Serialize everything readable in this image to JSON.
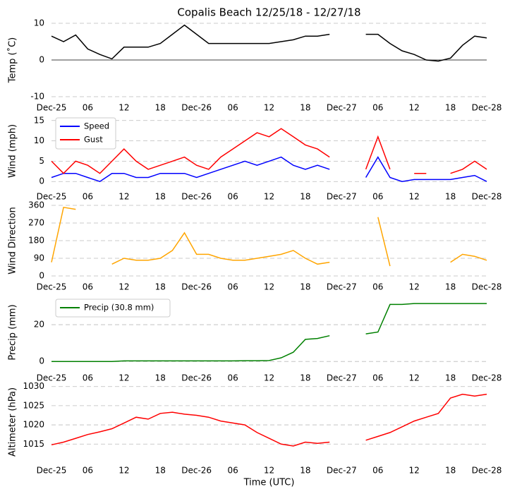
{
  "chart_data": [
    {
      "type": "line",
      "title": "Copalis Beach 12/25/18 - 12/27/18",
      "ylabel": "Temp (˚C)",
      "zero_line": true,
      "grid": true,
      "x": [
        0,
        2,
        4,
        6,
        8,
        10,
        12,
        14,
        16,
        18,
        20,
        22,
        24,
        26,
        28,
        30,
        32,
        34,
        36,
        38,
        40,
        42,
        44,
        46,
        48,
        50,
        52,
        54,
        56,
        58,
        60,
        62,
        64,
        66,
        68,
        70,
        72
      ],
      "xlim": [
        0,
        72
      ],
      "xticks": [
        {
          "value": 0,
          "label": "Dec-25"
        },
        {
          "value": 6,
          "label": "06"
        },
        {
          "value": 12,
          "label": "12"
        },
        {
          "value": 18,
          "label": "18"
        },
        {
          "value": 24,
          "label": "Dec-26"
        },
        {
          "value": 30,
          "label": "06"
        },
        {
          "value": 36,
          "label": "12"
        },
        {
          "value": 42,
          "label": "18"
        },
        {
          "value": 48,
          "label": "Dec-27"
        },
        {
          "value": 54,
          "label": "06"
        },
        {
          "value": 60,
          "label": "12"
        },
        {
          "value": 66,
          "label": "18"
        },
        {
          "value": 72,
          "label": "Dec-28"
        }
      ],
      "ylim": [
        -10,
        10
      ],
      "yticks": [
        -10,
        0,
        10
      ],
      "series": [
        {
          "color": "#000000",
          "values": [
            6.5,
            5,
            6.8,
            3,
            1.5,
            0.3,
            3.5,
            3.5,
            3.5,
            4.5,
            7,
            9.5,
            7,
            4.5,
            4.5,
            4.5,
            4.5,
            4.5,
            4.5,
            5,
            5.5,
            6.5,
            6.5,
            7,
            null,
            null,
            7,
            7,
            4.5,
            2.5,
            1.5,
            0,
            -0.3,
            0.5,
            4,
            6.5,
            6
          ]
        }
      ]
    },
    {
      "type": "line",
      "ylabel": "Wind (mph)",
      "grid": true,
      "legend": "upper left",
      "x": [
        0,
        2,
        4,
        6,
        8,
        10,
        12,
        14,
        16,
        18,
        20,
        22,
        24,
        26,
        28,
        30,
        32,
        34,
        36,
        38,
        40,
        42,
        44,
        46,
        48,
        50,
        52,
        54,
        56,
        58,
        60,
        62,
        64,
        66,
        68,
        70,
        72
      ],
      "xlim": [
        0,
        72
      ],
      "xticks": [
        {
          "value": 0,
          "label": "Dec-25"
        },
        {
          "value": 6,
          "label": "06"
        },
        {
          "value": 12,
          "label": "12"
        },
        {
          "value": 18,
          "label": "18"
        },
        {
          "value": 24,
          "label": "Dec-26"
        },
        {
          "value": 30,
          "label": "06"
        },
        {
          "value": 36,
          "label": "12"
        },
        {
          "value": 42,
          "label": "18"
        },
        {
          "value": 48,
          "label": "Dec-27"
        },
        {
          "value": 54,
          "label": "06"
        },
        {
          "value": 60,
          "label": "12"
        },
        {
          "value": 66,
          "label": "18"
        },
        {
          "value": 72,
          "label": "Dec-28"
        }
      ],
      "ylim": [
        -1,
        16
      ],
      "yticks": [
        0,
        5,
        10,
        15
      ],
      "series": [
        {
          "name": "Speed",
          "color": "#0000ff",
          "values": [
            1,
            2,
            2,
            1,
            0,
            2,
            2,
            1,
            1,
            2,
            2,
            2,
            1,
            2,
            3,
            4,
            5,
            4,
            5,
            6,
            4,
            3,
            4,
            3,
            null,
            null,
            1,
            6,
            1,
            0,
            0.5,
            0.5,
            0.5,
            0.5,
            1,
            1.5,
            0
          ]
        },
        {
          "name": "Gust",
          "color": "#ff0000",
          "values": [
            5,
            2,
            5,
            4,
            2,
            5,
            8,
            5,
            3,
            4,
            5,
            6,
            4,
            3,
            6,
            8,
            10,
            12,
            11,
            13,
            11,
            9,
            8,
            6,
            null,
            null,
            3,
            11,
            3,
            null,
            2,
            2,
            null,
            2,
            3,
            5,
            3
          ]
        }
      ]
    },
    {
      "type": "line",
      "ylabel": "Wind Direction",
      "grid": true,
      "x": [
        0,
        2,
        4,
        6,
        8,
        10,
        12,
        14,
        16,
        18,
        20,
        22,
        24,
        26,
        28,
        30,
        32,
        34,
        36,
        38,
        40,
        42,
        44,
        46,
        48,
        50,
        52,
        54,
        56,
        58,
        60,
        62,
        64,
        66,
        68,
        70,
        72
      ],
      "xlim": [
        0,
        72
      ],
      "xticks": [
        {
          "value": 0,
          "label": "Dec-25"
        },
        {
          "value": 6,
          "label": "06"
        },
        {
          "value": 12,
          "label": "12"
        },
        {
          "value": 18,
          "label": "18"
        },
        {
          "value": 24,
          "label": "Dec-26"
        },
        {
          "value": 30,
          "label": "06"
        },
        {
          "value": 36,
          "label": "12"
        },
        {
          "value": 42,
          "label": "18"
        },
        {
          "value": 48,
          "label": "Dec-27"
        },
        {
          "value": 54,
          "label": "06"
        },
        {
          "value": 60,
          "label": "12"
        },
        {
          "value": 66,
          "label": "18"
        },
        {
          "value": 72,
          "label": "Dec-28"
        }
      ],
      "ylim": [
        0,
        360
      ],
      "yticks": [
        0,
        90,
        180,
        270,
        360
      ],
      "series": [
        {
          "color": "#ffa500",
          "values": [
            70,
            350,
            340,
            null,
            null,
            60,
            90,
            80,
            80,
            90,
            130,
            220,
            110,
            110,
            90,
            80,
            80,
            90,
            100,
            110,
            130,
            90,
            60,
            70,
            null,
            null,
            null,
            300,
            50,
            null,
            null,
            null,
            null,
            70,
            110,
            100,
            80
          ]
        }
      ]
    },
    {
      "type": "line",
      "ylabel": "Precip (mm)",
      "grid": true,
      "legend": "upper left",
      "x": [
        0,
        2,
        4,
        6,
        8,
        10,
        12,
        14,
        16,
        18,
        20,
        22,
        24,
        26,
        28,
        30,
        32,
        34,
        36,
        38,
        40,
        42,
        44,
        46,
        48,
        50,
        52,
        54,
        56,
        58,
        60,
        62,
        64,
        66,
        68,
        70,
        72
      ],
      "xlim": [
        0,
        72
      ],
      "xticks": [
        {
          "value": 0,
          "label": "Dec-25"
        },
        {
          "value": 6,
          "label": "06"
        },
        {
          "value": 12,
          "label": "12"
        },
        {
          "value": 18,
          "label": "18"
        },
        {
          "value": 24,
          "label": "Dec-26"
        },
        {
          "value": 30,
          "label": "06"
        },
        {
          "value": 36,
          "label": "12"
        },
        {
          "value": 42,
          "label": "18"
        },
        {
          "value": 48,
          "label": "Dec-27"
        },
        {
          "value": 54,
          "label": "06"
        },
        {
          "value": 60,
          "label": "12"
        },
        {
          "value": 66,
          "label": "18"
        },
        {
          "value": 72,
          "label": "Dec-28"
        }
      ],
      "ylim": [
        -3,
        34.6
      ],
      "yticks": [
        0,
        20
      ],
      "series": [
        {
          "name": "Precip (30.8 mm)",
          "color": "#008000",
          "values": [
            0,
            0,
            0,
            0,
            0,
            0,
            0.3,
            0.3,
            0.3,
            0.3,
            0.3,
            0.3,
            0.3,
            0.3,
            0.3,
            0.3,
            0.4,
            0.4,
            0.5,
            2,
            5,
            12,
            12.5,
            14,
            null,
            null,
            15,
            16,
            31,
            31,
            31.5,
            31.5,
            31.5,
            31.5,
            31.5,
            31.5,
            31.5
          ]
        }
      ]
    },
    {
      "type": "line",
      "ylabel": "Altimeter (hPa)",
      "xlabel": "Time (UTC)",
      "grid": true,
      "x": [
        0,
        2,
        4,
        6,
        8,
        10,
        12,
        14,
        16,
        18,
        20,
        22,
        24,
        26,
        28,
        30,
        32,
        34,
        36,
        38,
        40,
        42,
        44,
        46,
        48,
        50,
        52,
        54,
        56,
        58,
        60,
        62,
        64,
        66,
        68,
        70,
        72
      ],
      "xlim": [
        0,
        72
      ],
      "xticks": [
        {
          "value": 0,
          "label": "Dec-25"
        },
        {
          "value": 6,
          "label": "06"
        },
        {
          "value": 12,
          "label": "12"
        },
        {
          "value": 18,
          "label": "18"
        },
        {
          "value": 24,
          "label": "Dec-26"
        },
        {
          "value": 30,
          "label": "06"
        },
        {
          "value": 36,
          "label": "12"
        },
        {
          "value": 42,
          "label": "18"
        },
        {
          "value": 48,
          "label": "Dec-27"
        },
        {
          "value": 54,
          "label": "06"
        },
        {
          "value": 60,
          "label": "12"
        },
        {
          "value": 66,
          "label": "18"
        },
        {
          "value": 72,
          "label": "Dec-28"
        }
      ],
      "ylim": [
        1011,
        1030.5
      ],
      "yticks": [
        1015,
        1020,
        1025,
        1030
      ],
      "series": [
        {
          "color": "#ff0000",
          "values": [
            1014.8,
            1015.5,
            1016.5,
            1017.5,
            1018.2,
            1019,
            1020.5,
            1022,
            1021.5,
            1023,
            1023.3,
            1022.8,
            1022.5,
            1022,
            1021,
            1020.5,
            1020,
            1018,
            1016.5,
            1015,
            1014.5,
            1015.5,
            1015.2,
            1015.5,
            null,
            null,
            1016,
            1017,
            1018,
            1019.5,
            1021,
            1022,
            1023,
            1027,
            1028,
            1027.5,
            1028
          ]
        }
      ]
    }
  ]
}
